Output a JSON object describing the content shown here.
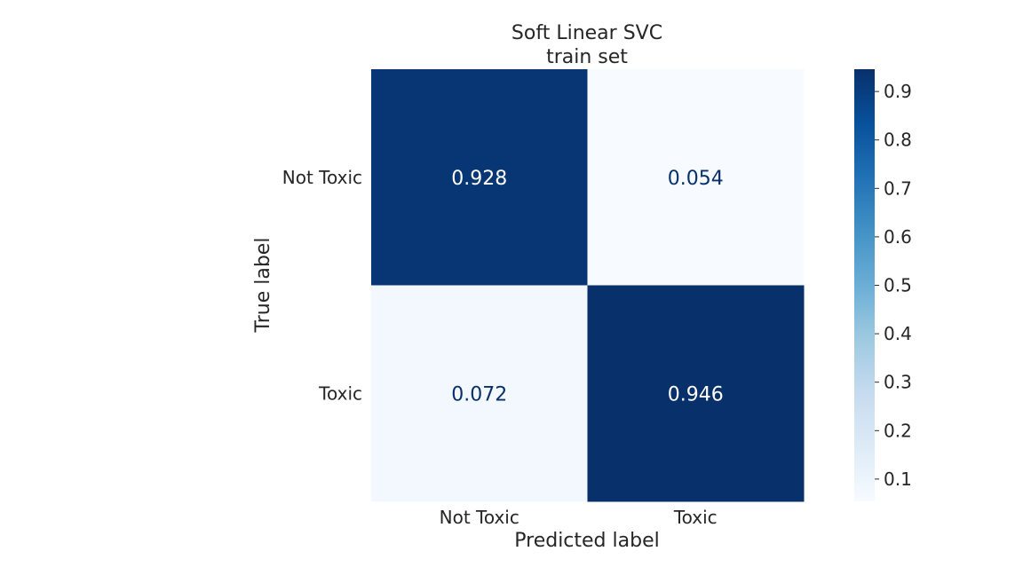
{
  "chart_data": {
    "type": "heatmap",
    "title": "Soft Linear SVC",
    "subtitle": "train set",
    "xlabel": "Predicted label",
    "ylabel": "True label",
    "x_categories": [
      "Not Toxic",
      "Toxic"
    ],
    "y_categories": [
      "Not Toxic",
      "Toxic"
    ],
    "values": [
      [
        0.928,
        0.054
      ],
      [
        0.072,
        0.946
      ]
    ],
    "cell_labels": [
      [
        "0.928",
        "0.054"
      ],
      [
        "0.072",
        "0.946"
      ]
    ],
    "colormap": "Blues",
    "colorbar": {
      "range": [
        0.054,
        0.946
      ],
      "ticks": [
        0.1,
        0.2,
        0.3,
        0.4,
        0.5,
        0.6,
        0.7,
        0.8,
        0.9
      ],
      "tick_labels": [
        "0.1",
        "0.2",
        "0.3",
        "0.4",
        "0.5",
        "0.6",
        "0.7",
        "0.8",
        "0.9"
      ]
    },
    "colors": {
      "high": "#08306b",
      "low": "#f7fbff",
      "text_dark_cell": "#ffffff",
      "text_light_cell": "#08306b"
    },
    "grid": false
  }
}
